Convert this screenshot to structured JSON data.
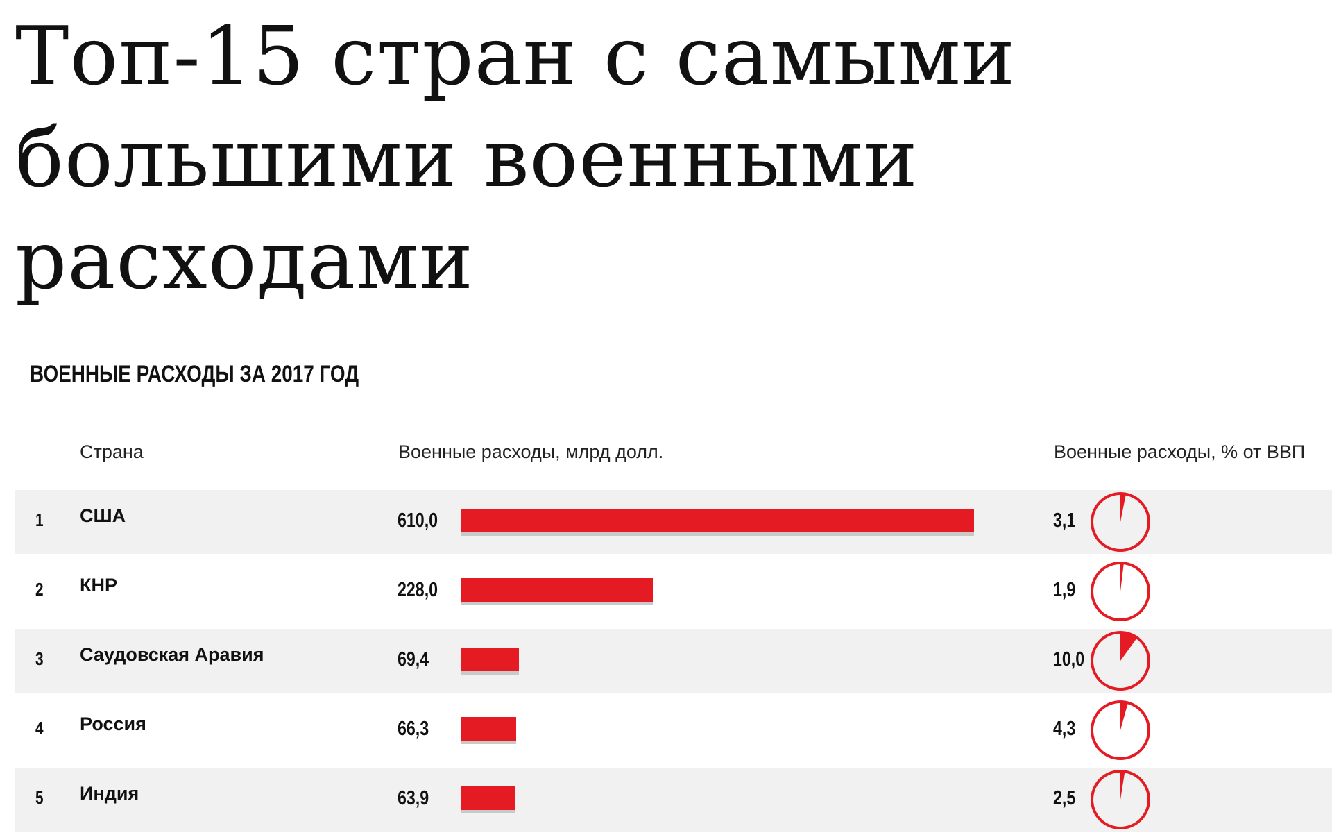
{
  "title": "Топ-15 стран с самыми большими военными расходами",
  "subtitle": "ВОЕННЫЕ РАСХОДЫ ЗА 2017 ГОД",
  "columns": {
    "country": "Страна",
    "spending": "Военные расходы, млрд долл.",
    "gdp_share": "Военные расходы, % от ВВП"
  },
  "colors": {
    "accent": "#e51b24",
    "row_shade": "#f1f1f1",
    "text": "#111111"
  },
  "chart_data": {
    "type": "bar",
    "title": "ВОЕННЫЕ РАСХОДЫ ЗА 2017 ГОД",
    "categories": [
      "США",
      "КНР",
      "Саудовская Аравия",
      "Россия",
      "Индия"
    ],
    "series": [
      {
        "name": "Военные расходы, млрд долл.",
        "values": [
          610.0,
          228.0,
          69.4,
          66.3,
          63.9
        ]
      },
      {
        "name": "Военные расходы, % от ВВП",
        "values": [
          3.1,
          1.9,
          10.0,
          4.3,
          2.5
        ]
      }
    ],
    "xlim": [
      0,
      610
    ],
    "grid": false,
    "rows": [
      {
        "rank": "1",
        "country": "США",
        "spend_label": "610,0",
        "spend": 610.0,
        "gdp_label": "3,1",
        "gdp": 3.1
      },
      {
        "rank": "2",
        "country": "КНР",
        "spend_label": "228,0",
        "spend": 228.0,
        "gdp_label": "1,9",
        "gdp": 1.9
      },
      {
        "rank": "3",
        "country": "Саудовская Аравия",
        "spend_label": "69,4",
        "spend": 69.4,
        "gdp_label": "10,0",
        "gdp": 10.0
      },
      {
        "rank": "4",
        "country": "Россия",
        "spend_label": "66,3",
        "spend": 66.3,
        "gdp_label": "4,3",
        "gdp": 4.3
      },
      {
        "rank": "5",
        "country": "Индия",
        "spend_label": "63,9",
        "spend": 63.9,
        "gdp_label": "2,5",
        "gdp": 2.5
      }
    ]
  }
}
